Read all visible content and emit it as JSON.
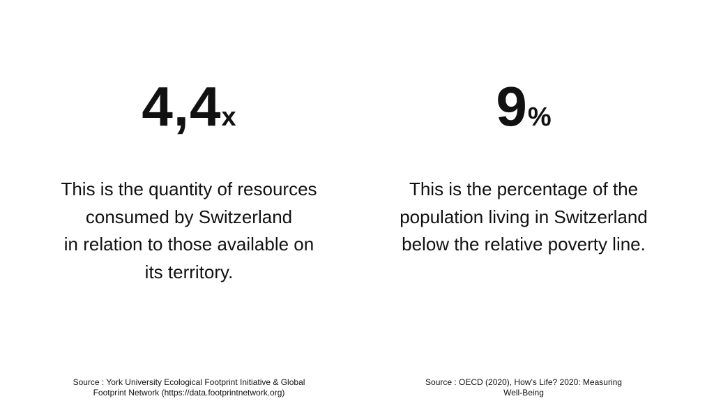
{
  "stats": [
    {
      "number": "4,4",
      "suffix": "x",
      "description": [
        "This is the quantity of resources",
        "consumed by Switzerland",
        "in relation to those available on",
        "its territory."
      ],
      "source": [
        "Source : York University Ecological Footprint Initiative & Global",
        "Footprint Network (https://data.footprintnetwork.org)"
      ]
    },
    {
      "number": "9",
      "suffix": "%",
      "description": [
        "This is the percentage of the",
        "population living in Switzerland",
        "below the relative poverty line."
      ],
      "source": [
        "Source : OECD (2020), How’s Life? 2020: Measuring",
        "Well-Being"
      ]
    }
  ]
}
